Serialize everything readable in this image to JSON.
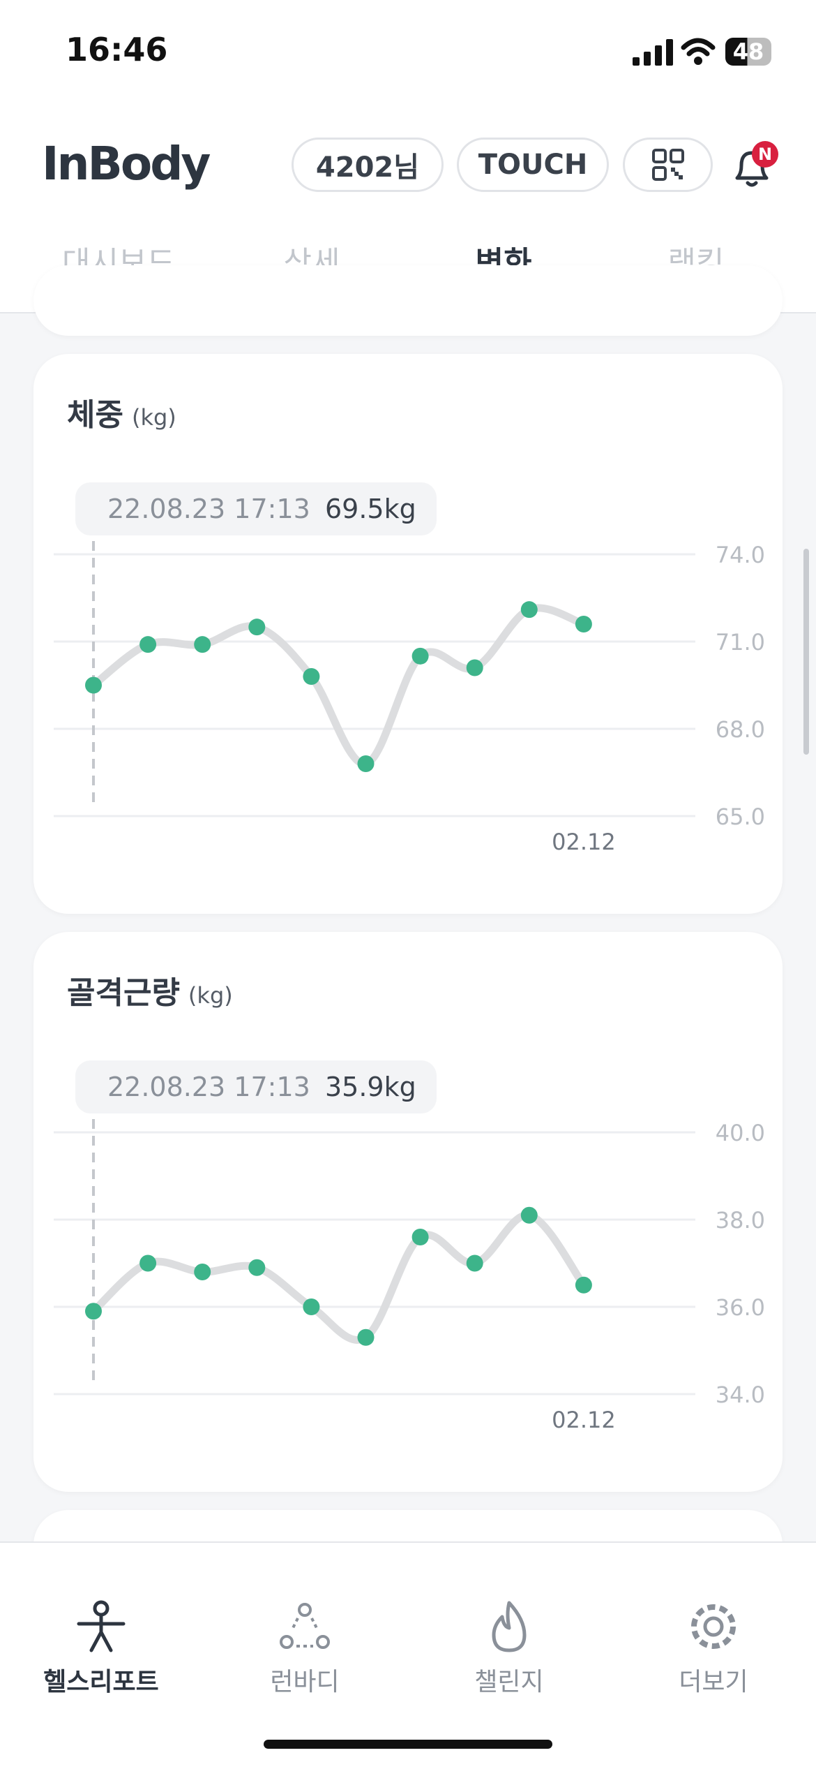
{
  "status_bar": {
    "time": "16:46",
    "battery": "48"
  },
  "header": {
    "logo": "InBody",
    "user": "4202님",
    "touch": "TOUCH",
    "badge": "N"
  },
  "tabs": {
    "items": [
      "대시보드",
      "상세",
      "변화",
      "랭킹"
    ],
    "active": 2
  },
  "chart_data": [
    {
      "type": "line",
      "title": "체중",
      "unit": "(kg)",
      "tooltip": {
        "date": "22.08.23 17:13",
        "value": "69.5kg"
      },
      "selected": 0,
      "categories": [
        null,
        null,
        null,
        null,
        null,
        null,
        null,
        null,
        null,
        "02.12"
      ],
      "values": [
        69.5,
        70.9,
        70.9,
        71.5,
        69.8,
        66.8,
        70.5,
        70.1,
        72.1,
        71.6
      ],
      "color": "#3db48a",
      "line_color": "#dcdddf",
      "ylim": [
        65,
        74
      ],
      "yticks": [
        {
          "value": 65,
          "label": "65.0"
        },
        {
          "value": 68,
          "label": "68.0"
        },
        {
          "value": 71,
          "label": "71.0"
        },
        {
          "value": 74,
          "label": "74.0"
        }
      ],
      "grid": true
    },
    {
      "type": "line",
      "title": "골격근량",
      "unit": "(kg)",
      "tooltip": {
        "date": "22.08.23 17:13",
        "value": "35.9kg"
      },
      "selected": 0,
      "categories": [
        null,
        null,
        null,
        null,
        null,
        null,
        null,
        null,
        null,
        "02.12"
      ],
      "values": [
        35.9,
        37.0,
        36.8,
        36.9,
        36.0,
        35.3,
        37.6,
        37.0,
        38.1,
        36.5
      ],
      "color": "#3db48a",
      "line_color": "#dcdddf",
      "ylim": [
        34,
        40
      ],
      "yticks": [
        {
          "value": 34,
          "label": "34.0"
        },
        {
          "value": 36,
          "label": "36.0"
        },
        {
          "value": 38,
          "label": "38.0"
        },
        {
          "value": 40,
          "label": "40.0"
        }
      ],
      "grid": true
    }
  ],
  "bottom_nav": {
    "items": [
      "헬스리포트",
      "런바디",
      "챌린지",
      "더보기"
    ],
    "active": 0
  }
}
